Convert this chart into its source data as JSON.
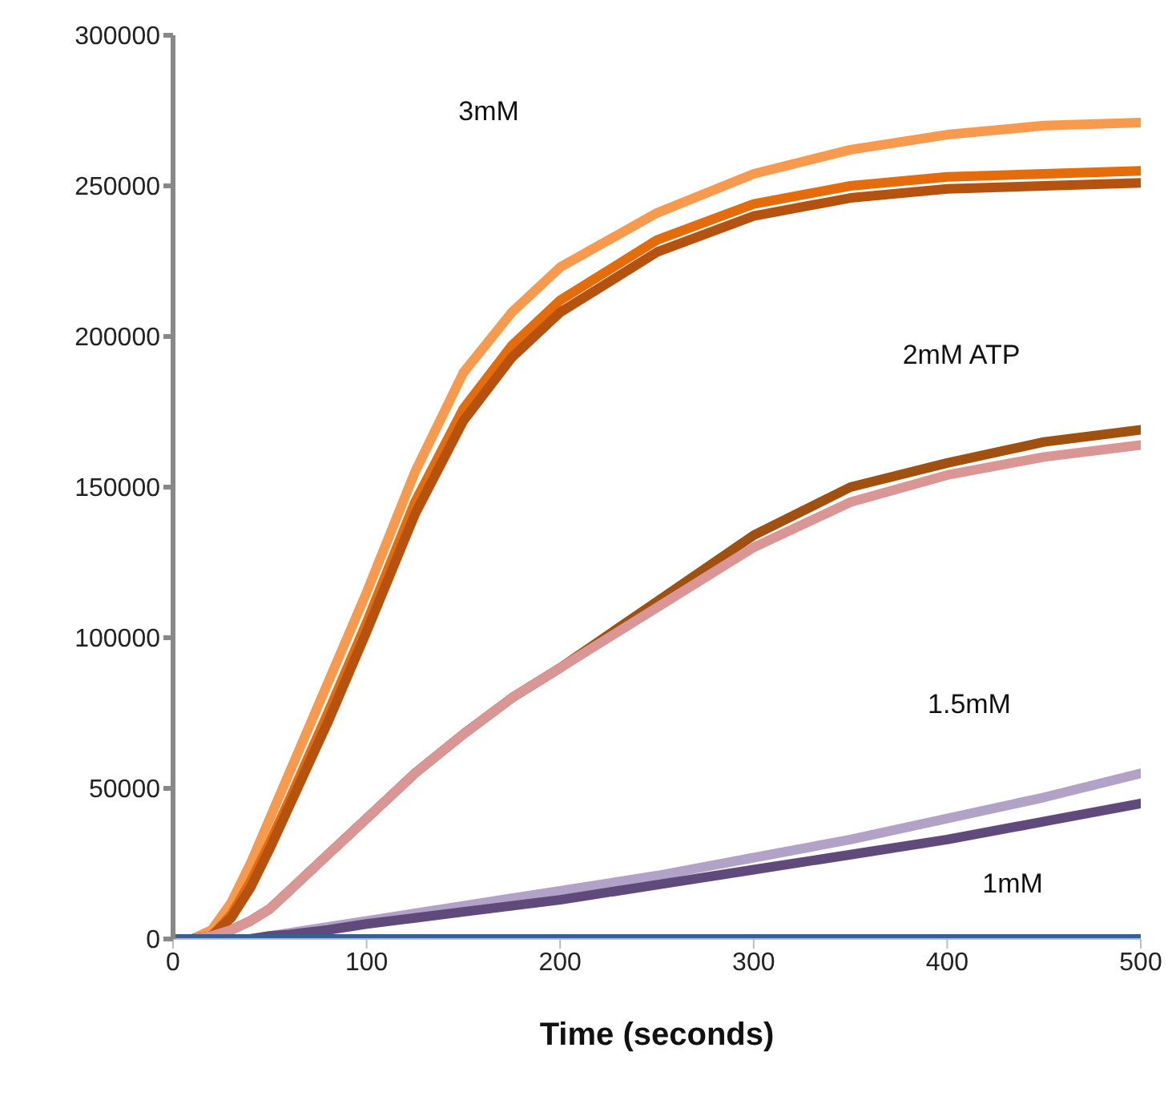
{
  "chart_data": {
    "type": "line",
    "xlabel": "Time (seconds)",
    "x": [
      0,
      10,
      20,
      30,
      40,
      50,
      60,
      80,
      100,
      125,
      150,
      175,
      200,
      250,
      300,
      350,
      400,
      450,
      500
    ],
    "series": [
      {
        "color": "#f79a4e",
        "values": [
          0,
          0,
          3000,
          12000,
          25000,
          40000,
          55000,
          85000,
          115000,
          155000,
          188000,
          208000,
          223000,
          241000,
          254000,
          262000,
          267000,
          270000,
          271000
        ]
      },
      {
        "color": "#e46c0a",
        "values": [
          0,
          0,
          1000,
          8000,
          19000,
          32000,
          46000,
          75000,
          105000,
          145000,
          176000,
          197000,
          212000,
          232000,
          244000,
          250000,
          253000,
          254000,
          255000
        ]
      },
      {
        "color": "#b5520f",
        "values": [
          0,
          0,
          1000,
          7000,
          17000,
          30000,
          44000,
          72000,
          102000,
          141000,
          172000,
          193000,
          208000,
          228000,
          240000,
          246000,
          249000,
          250000,
          251000
        ]
      },
      {
        "color": "#a0500f",
        "values": [
          0,
          0,
          1000,
          3000,
          6000,
          10000,
          16000,
          28000,
          40000,
          55000,
          68000,
          80000,
          90000,
          112000,
          134000,
          150000,
          158000,
          165000,
          169000
        ]
      },
      {
        "color": "#d99694",
        "values": [
          0,
          0,
          1000,
          3000,
          6000,
          10000,
          16000,
          28000,
          40000,
          55000,
          68000,
          80000,
          90000,
          110000,
          130000,
          145000,
          154000,
          160000,
          164000
        ]
      },
      {
        "color": "#b3a2c7",
        "values": [
          0,
          0,
          0,
          0,
          0,
          1000,
          2000,
          4000,
          6000,
          8500,
          11000,
          13500,
          16000,
          21000,
          27000,
          33000,
          40000,
          47000,
          55000
        ]
      },
      {
        "color": "#604a7b",
        "values": [
          0,
          0,
          0,
          0,
          0,
          1000,
          1500,
          3000,
          5000,
          7000,
          9000,
          11000,
          13000,
          18000,
          23000,
          28000,
          33000,
          39000,
          45000
        ]
      },
      {
        "color": "#376092",
        "values": [
          0,
          0,
          0,
          0,
          0,
          0,
          0,
          0,
          0,
          0,
          0,
          0,
          0,
          0,
          0,
          0,
          0,
          0,
          0
        ]
      }
    ],
    "xlim": [
      0,
      500
    ],
    "xticks": [
      0,
      100,
      200,
      300,
      400,
      500
    ],
    "ylim": [
      0,
      300000
    ],
    "yticks": [
      0,
      50000,
      100000,
      150000,
      200000,
      250000,
      300000
    ],
    "marker": "none",
    "line_style": "solid",
    "annotations": [
      "3mM",
      "2mM ATP",
      "1.5mM",
      "1mM"
    ]
  }
}
